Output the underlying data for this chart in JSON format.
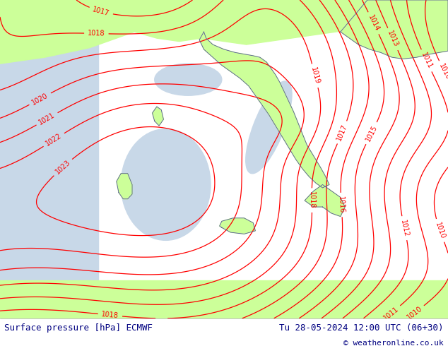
{
  "title_left": "Surface pressure [hPa] ECMWF",
  "title_right": "Tu 28-05-2024 12:00 UTC (06+30)",
  "copyright": "© weatheronline.co.uk",
  "bg_color_land": "#ccff99",
  "bg_color_sea": "#c8d8e8",
  "contour_color": "#ff0000",
  "coast_color": "#555599",
  "border_color": "#333333",
  "footer_text_color": "#000080",
  "copyright_color": "#000080",
  "figsize": [
    6.34,
    4.9
  ],
  "dpi": 100,
  "label_fontsize": 7,
  "footer_fontsize": 9
}
